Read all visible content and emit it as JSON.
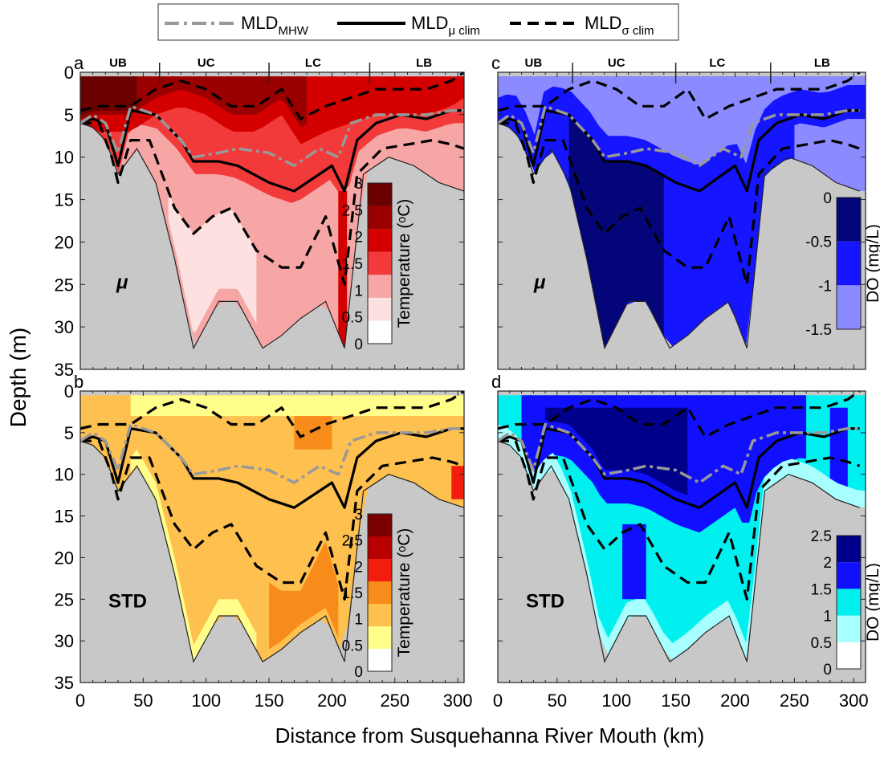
{
  "figure": {
    "ylabel": "Depth (m)",
    "xlabel": "Distance from Susquehanna River Mouth (km)"
  },
  "legend": {
    "items": [
      {
        "label": "MLD",
        "sub": "MHW",
        "style": "dashdot",
        "color": "#999999"
      },
      {
        "label": "MLD",
        "sub": "μ clim",
        "style": "solid",
        "color": "#000000"
      },
      {
        "label": "MLD",
        "sub": "σ clim",
        "style": "dashed",
        "color": "#000000"
      }
    ]
  },
  "regions": [
    {
      "label": "UB",
      "x": 20
    },
    {
      "label": "UC",
      "x": 100
    },
    {
      "label": "LC",
      "x": 185
    },
    {
      "label": "LB",
      "x": 270
    }
  ],
  "region_bounds_km": [
    63,
    150,
    230
  ],
  "panel_labels": {
    "a": "a",
    "b": "b",
    "c": "c",
    "d": "d"
  },
  "panel_texts": {
    "mu": "μ",
    "std": "STD"
  },
  "colorbars": {
    "temperature": {
      "label": "Temperature (ᵒC)",
      "ticks": [
        "3",
        "2.5",
        "2",
        "1.5",
        "1",
        "0.5",
        "0"
      ]
    },
    "do_mean": {
      "label": "DO (mg/L)",
      "ticks": [
        "0",
        "-0.5",
        "-1",
        "-1.5"
      ]
    },
    "do_std": {
      "label": "DO (mg/L)",
      "ticks": [
        "2.5",
        "2",
        "1.5",
        "1",
        "0.5",
        "0"
      ]
    }
  },
  "colors": {
    "land": "#c8c8c8",
    "temp_mean": [
      "#ffffff",
      "#fde0e0",
      "#f7a6a6",
      "#f23a3a",
      "#d40000",
      "#9b0000",
      "#6b0000"
    ],
    "temp_std": [
      "#ffffff",
      "#fffe8a",
      "#fec04e",
      "#f88c1a",
      "#f21d0d",
      "#b80000",
      "#7a0000"
    ],
    "do_mean": [
      "#8b8bff",
      "#1515ff",
      "#05057a"
    ],
    "do_std": [
      "#ffffff",
      "#a8ffff",
      "#00f0f0",
      "#1010ff",
      "#00008a"
    ]
  },
  "chart_data": {
    "type": "contour",
    "x_unit": "km",
    "y_unit": "m",
    "xlim": [
      0,
      305
    ],
    "ylim": [
      35,
      0
    ],
    "xticks": [
      0,
      50,
      100,
      150,
      200,
      250,
      300
    ],
    "yticks": [
      0,
      5,
      10,
      15,
      20,
      25,
      30,
      35
    ],
    "bathymetry": {
      "x": [
        0,
        10,
        20,
        30,
        45,
        60,
        75,
        90,
        110,
        125,
        145,
        160,
        175,
        195,
        210,
        225,
        245,
        265,
        285,
        305
      ],
      "depth": [
        6,
        6.5,
        8,
        12,
        9,
        13,
        22,
        32.5,
        27,
        27,
        32.5,
        31,
        29,
        27,
        32.5,
        12,
        10,
        11,
        13,
        14
      ]
    },
    "lines": {
      "mld_mhw": {
        "x": [
          0,
          10,
          20,
          30,
          40,
          60,
          80,
          90,
          110,
          125,
          150,
          170,
          190,
          205,
          215,
          235,
          255,
          275,
          295,
          305
        ],
        "y": [
          6,
          5,
          6,
          9.5,
          4,
          5,
          8,
          10,
          9.5,
          9,
          9.5,
          11,
          9,
          10,
          6,
          5,
          5,
          5,
          4.5,
          4.5
        ]
      },
      "mld_mu_clim": {
        "x": [
          0,
          10,
          20,
          30,
          40,
          60,
          80,
          90,
          110,
          125,
          150,
          170,
          190,
          200,
          210,
          220,
          235,
          255,
          275,
          295,
          305
        ],
        "y": [
          6,
          5.5,
          6,
          11,
          4.5,
          5,
          8,
          10.5,
          10.5,
          11,
          13,
          14,
          12,
          11,
          14,
          8,
          6,
          5,
          5.5,
          4.5,
          4.5
        ]
      },
      "mld_sigma_upper": {
        "x": [
          0,
          15,
          40,
          60,
          80,
          100,
          120,
          140,
          160,
          175,
          195,
          215,
          235,
          255,
          275,
          295,
          305
        ],
        "y": [
          4.5,
          4,
          4,
          2,
          1,
          2,
          4,
          4,
          2,
          5.5,
          4,
          3,
          2,
          2,
          2,
          1,
          0
        ]
      },
      "mld_sigma_lower": {
        "x": [
          0,
          15,
          25,
          30,
          40,
          55,
          75,
          90,
          105,
          120,
          140,
          160,
          175,
          195,
          210,
          220,
          240,
          260,
          280,
          295,
          305
        ],
        "y": [
          6,
          6,
          10,
          13,
          8,
          8,
          16,
          19,
          17,
          16,
          21,
          23,
          23,
          17,
          25,
          12,
          9,
          8.5,
          8,
          8.5,
          9
        ]
      }
    },
    "panels": [
      {
        "id": "a",
        "variable": "Temperature",
        "statistic": "mean",
        "levels": [
          0,
          0.5,
          1,
          1.5,
          2,
          2.5,
          3
        ]
      },
      {
        "id": "b",
        "variable": "Temperature",
        "statistic": "std",
        "levels": [
          0,
          0.5,
          1,
          1.5,
          2,
          2.5,
          3
        ]
      },
      {
        "id": "c",
        "variable": "DO",
        "statistic": "mean",
        "levels": [
          -1.5,
          -1,
          -0.5,
          0
        ]
      },
      {
        "id": "d",
        "variable": "DO",
        "statistic": "std",
        "levels": [
          0,
          0.5,
          1,
          1.5,
          2,
          2.5
        ]
      }
    ]
  }
}
